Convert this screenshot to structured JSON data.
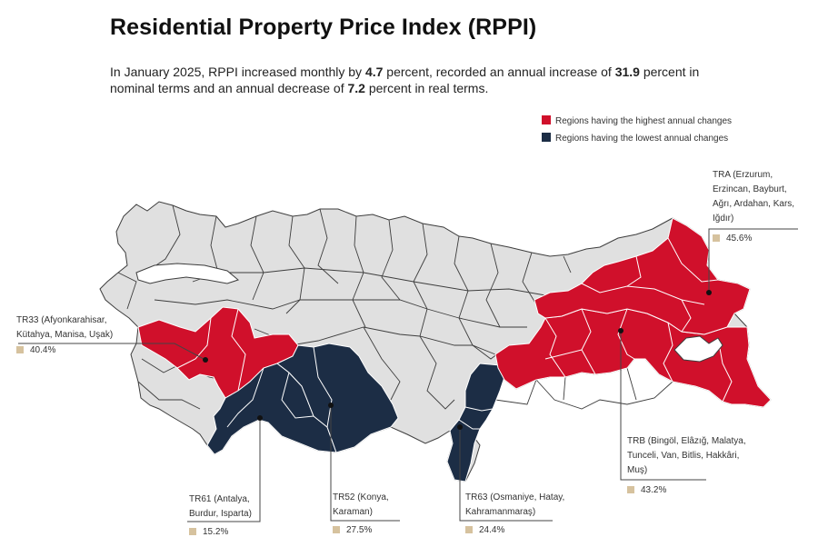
{
  "title": "Residential Property Price Index (RPPI)",
  "summary": {
    "p1": "In January 2025, RPPI increased monthly by ",
    "monthly": "4.7",
    "p2": " percent, recorded an annual increase of ",
    "annual_nominal": "31.9",
    "p3": " percent in nominal terms and an annual decrease of ",
    "annual_real": "7.2",
    "p4": " percent in real terms."
  },
  "legend": {
    "high": {
      "label": "Regions having the highest annual changes",
      "color": "#d0102b"
    },
    "low": {
      "label": "Regions having the lowest annual changes",
      "color": "#1c2d45"
    }
  },
  "colors": {
    "land": "#e0e0e0",
    "border": "#3d3d3d",
    "lake": "#ffffff",
    "value_marker": "#d6c29e"
  },
  "regions": {
    "tra": {
      "lines": [
        "TRA (Erzurum,",
        "Erzincan, Bayburt,",
        "Ağrı, Ardahan, Kars,",
        "Iğdır)"
      ],
      "value": "45.6%"
    },
    "tr33": {
      "lines": [
        "TR33 (Afyonkarahisar,",
        "Kütahya, Manisa, Uşak)"
      ],
      "value": "40.4%"
    },
    "trb": {
      "lines": [
        "TRB (Bingöl, Elâzığ, Malatya,",
        "Tunceli, Van, Bitlis, Hakkâri,",
        "Muş)"
      ],
      "value": "43.2%"
    },
    "tr61": {
      "lines": [
        "TR61 (Antalya,",
        "Burdur, Isparta)"
      ],
      "value": "15.2%"
    },
    "tr52": {
      "lines": [
        "TR52 (Konya,",
        "Karaman)"
      ],
      "value": "27.5%"
    },
    "tr63": {
      "lines": [
        "TR63 (Osmaniye, Hatay,",
        "Kahramanmaraş)"
      ],
      "value": "24.4%"
    }
  }
}
